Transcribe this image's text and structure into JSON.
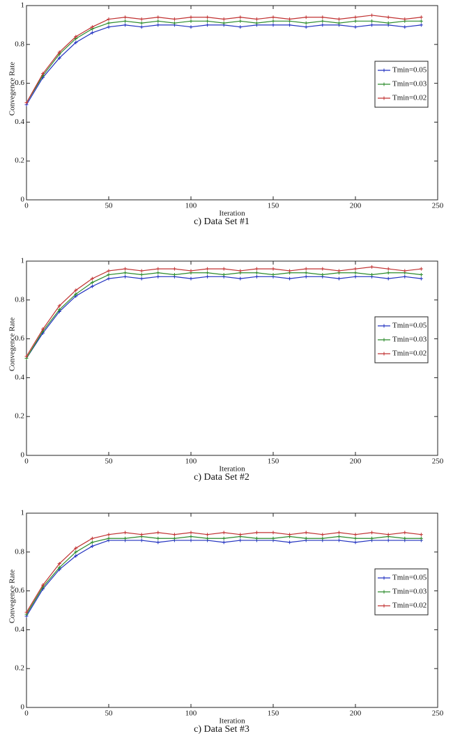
{
  "chart_data": [
    {
      "type": "line",
      "caption": "c) Data Set #1",
      "xlabel": "Iteration",
      "ylabel": "Convegence Rate",
      "x": [
        0,
        10,
        20,
        30,
        40,
        50,
        60,
        70,
        80,
        90,
        100,
        110,
        120,
        130,
        140,
        150,
        160,
        170,
        180,
        190,
        200,
        210,
        220,
        230,
        240
      ],
      "series": [
        {
          "name": "Tmin=0.05",
          "color": "#2030c0",
          "values": [
            0.49,
            0.63,
            0.73,
            0.81,
            0.86,
            0.89,
            0.9,
            0.89,
            0.9,
            0.9,
            0.89,
            0.9,
            0.9,
            0.89,
            0.9,
            0.9,
            0.9,
            0.89,
            0.9,
            0.9,
            0.89,
            0.9,
            0.9,
            0.89,
            0.9
          ]
        },
        {
          "name": "Tmin=0.03",
          "color": "#2a8a2a",
          "values": [
            0.5,
            0.64,
            0.75,
            0.83,
            0.88,
            0.91,
            0.92,
            0.91,
            0.92,
            0.91,
            0.92,
            0.92,
            0.91,
            0.92,
            0.91,
            0.92,
            0.92,
            0.91,
            0.92,
            0.91,
            0.92,
            0.92,
            0.91,
            0.92,
            0.92
          ]
        },
        {
          "name": "Tmin=0.02",
          "color": "#c03030",
          "values": [
            0.5,
            0.65,
            0.76,
            0.84,
            0.89,
            0.93,
            0.94,
            0.93,
            0.94,
            0.93,
            0.94,
            0.94,
            0.93,
            0.94,
            0.93,
            0.94,
            0.93,
            0.94,
            0.94,
            0.93,
            0.94,
            0.95,
            0.94,
            0.93,
            0.94
          ]
        }
      ],
      "xlim": [
        0,
        250
      ],
      "xticks": [
        0,
        50,
        100,
        150,
        200,
        250
      ],
      "ylim": [
        0,
        1
      ],
      "yticks": [
        0,
        0.2,
        0.4,
        0.6,
        0.8,
        1
      ],
      "grid": false,
      "legend": "right"
    },
    {
      "type": "line",
      "caption": "c) Data Set #2",
      "xlabel": "Iteration",
      "ylabel": "Convegence Rate",
      "x": [
        0,
        10,
        20,
        30,
        40,
        50,
        60,
        70,
        80,
        90,
        100,
        110,
        120,
        130,
        140,
        150,
        160,
        170,
        180,
        190,
        200,
        210,
        220,
        230,
        240
      ],
      "series": [
        {
          "name": "Tmin=0.05",
          "color": "#2030c0",
          "values": [
            0.5,
            0.63,
            0.74,
            0.82,
            0.87,
            0.91,
            0.92,
            0.91,
            0.92,
            0.92,
            0.91,
            0.92,
            0.92,
            0.91,
            0.92,
            0.92,
            0.91,
            0.92,
            0.92,
            0.91,
            0.92,
            0.92,
            0.91,
            0.92,
            0.91
          ]
        },
        {
          "name": "Tmin=0.03",
          "color": "#2a8a2a",
          "values": [
            0.5,
            0.64,
            0.75,
            0.83,
            0.89,
            0.93,
            0.94,
            0.93,
            0.94,
            0.93,
            0.94,
            0.94,
            0.93,
            0.94,
            0.94,
            0.93,
            0.94,
            0.94,
            0.93,
            0.94,
            0.94,
            0.93,
            0.94,
            0.94,
            0.93
          ]
        },
        {
          "name": "Tmin=0.02",
          "color": "#c03030",
          "values": [
            0.51,
            0.65,
            0.77,
            0.85,
            0.91,
            0.95,
            0.96,
            0.95,
            0.96,
            0.96,
            0.95,
            0.96,
            0.96,
            0.95,
            0.96,
            0.96,
            0.95,
            0.96,
            0.96,
            0.95,
            0.96,
            0.97,
            0.96,
            0.95,
            0.96
          ]
        }
      ],
      "xlim": [
        0,
        250
      ],
      "xticks": [
        0,
        50,
        100,
        150,
        200,
        250
      ],
      "ylim": [
        0,
        1
      ],
      "yticks": [
        0,
        0.2,
        0.4,
        0.6,
        0.8,
        1
      ],
      "grid": false,
      "legend": "right"
    },
    {
      "type": "line",
      "caption": "c) Data Set #3",
      "xlabel": "Iteration",
      "ylabel": "Convegence Rate",
      "x": [
        0,
        10,
        20,
        30,
        40,
        50,
        60,
        70,
        80,
        90,
        100,
        110,
        120,
        130,
        140,
        150,
        160,
        170,
        180,
        190,
        200,
        210,
        220,
        230,
        240
      ],
      "series": [
        {
          "name": "Tmin=0.05",
          "color": "#2030c0",
          "values": [
            0.47,
            0.61,
            0.71,
            0.78,
            0.83,
            0.86,
            0.86,
            0.86,
            0.85,
            0.86,
            0.86,
            0.86,
            0.85,
            0.86,
            0.86,
            0.86,
            0.85,
            0.86,
            0.86,
            0.86,
            0.85,
            0.86,
            0.86,
            0.86,
            0.86
          ]
        },
        {
          "name": "Tmin=0.03",
          "color": "#2a8a2a",
          "values": [
            0.48,
            0.62,
            0.72,
            0.8,
            0.85,
            0.87,
            0.87,
            0.88,
            0.87,
            0.87,
            0.88,
            0.87,
            0.87,
            0.88,
            0.87,
            0.87,
            0.88,
            0.87,
            0.87,
            0.88,
            0.87,
            0.87,
            0.88,
            0.87,
            0.87
          ]
        },
        {
          "name": "Tmin=0.02",
          "color": "#c03030",
          "values": [
            0.49,
            0.63,
            0.74,
            0.82,
            0.87,
            0.89,
            0.9,
            0.89,
            0.9,
            0.89,
            0.9,
            0.89,
            0.9,
            0.89,
            0.9,
            0.9,
            0.89,
            0.9,
            0.89,
            0.9,
            0.89,
            0.9,
            0.89,
            0.9,
            0.89
          ]
        }
      ],
      "xlim": [
        0,
        250
      ],
      "xticks": [
        0,
        50,
        100,
        150,
        200,
        250
      ],
      "ylim": [
        0,
        1
      ],
      "yticks": [
        0,
        0.2,
        0.4,
        0.6,
        0.8,
        1
      ],
      "grid": false,
      "legend": "right"
    }
  ]
}
